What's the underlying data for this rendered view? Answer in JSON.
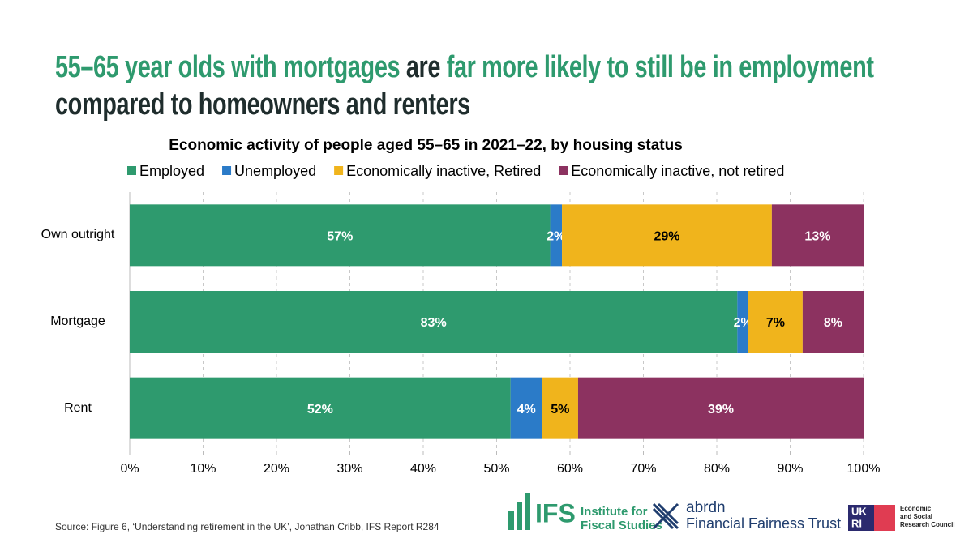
{
  "headline": [
    {
      "text": "55–65 year olds with mortgages",
      "color": "#2e9a6e"
    },
    {
      "text": "are",
      "color": "#1f2d2d"
    },
    {
      "text": "far more likely to still be in employment",
      "color": "#2e9a6e"
    },
    {
      "text": "compared to homeowners and renters",
      "color": "#1f2d2d"
    }
  ],
  "chart_data": {
    "type": "bar",
    "orientation": "horizontal",
    "stacked": true,
    "title": "Economic activity of people aged 55–65 in 2021–22, by housing status",
    "categories": [
      "Own outright",
      "Mortgage",
      "Rent"
    ],
    "series": [
      {
        "name": "Employed",
        "color": "#2e9a6e",
        "label_color": "#ffffff",
        "values": [
          57.3,
          82.8,
          51.9
        ],
        "value_labels": [
          "57%",
          "83%",
          "52%"
        ]
      },
      {
        "name": "Unemployed",
        "color": "#2b7bc8",
        "label_color": "#ffffff",
        "values": [
          1.6,
          1.5,
          4.3
        ],
        "value_labels": [
          "2%",
          "2%",
          "4%"
        ]
      },
      {
        "name": "Economically inactive, Retired",
        "color": "#f0b41c",
        "label_color": "#000000",
        "values": [
          28.6,
          7.4,
          4.9
        ],
        "value_labels": [
          "29%",
          "7%",
          "5%"
        ]
      },
      {
        "name": "Economically inactive, not retired",
        "color": "#8c3260",
        "label_color": "#ffffff",
        "values": [
          12.5,
          8.3,
          38.9
        ],
        "value_labels": [
          "13%",
          "8%",
          "39%"
        ]
      }
    ],
    "xlim": [
      0,
      100
    ],
    "xticks": [
      {
        "value": 0,
        "label": "0%"
      },
      {
        "value": 10,
        "label": "10%"
      },
      {
        "value": 20,
        "label": "20%"
      },
      {
        "value": 30,
        "label": "30%"
      },
      {
        "value": 40,
        "label": "40%"
      },
      {
        "value": 50,
        "label": "50%"
      },
      {
        "value": 60,
        "label": "60%"
      },
      {
        "value": 70,
        "label": "70%"
      },
      {
        "value": 80,
        "label": "80%"
      },
      {
        "value": 90,
        "label": "90%"
      },
      {
        "value": 100,
        "label": "100%"
      }
    ],
    "grid": true,
    "legend": "top"
  },
  "source": "Source: Figure 6, ‘Understanding retirement in the UK’, Jonathan Cribb, IFS Report R284",
  "logos": {
    "ifs": {
      "mark": "IFS",
      "name_1": "Institute for",
      "name_2": "Fiscal Studies"
    },
    "abrdn": {
      "name_1": "abrdn",
      "name_2": "Financial Fairness Trust"
    },
    "ukri": {
      "mark_1": "UK",
      "mark_2": "RI",
      "name_1": "Economic",
      "name_2": "and Social",
      "name_3": "Research Council"
    }
  }
}
